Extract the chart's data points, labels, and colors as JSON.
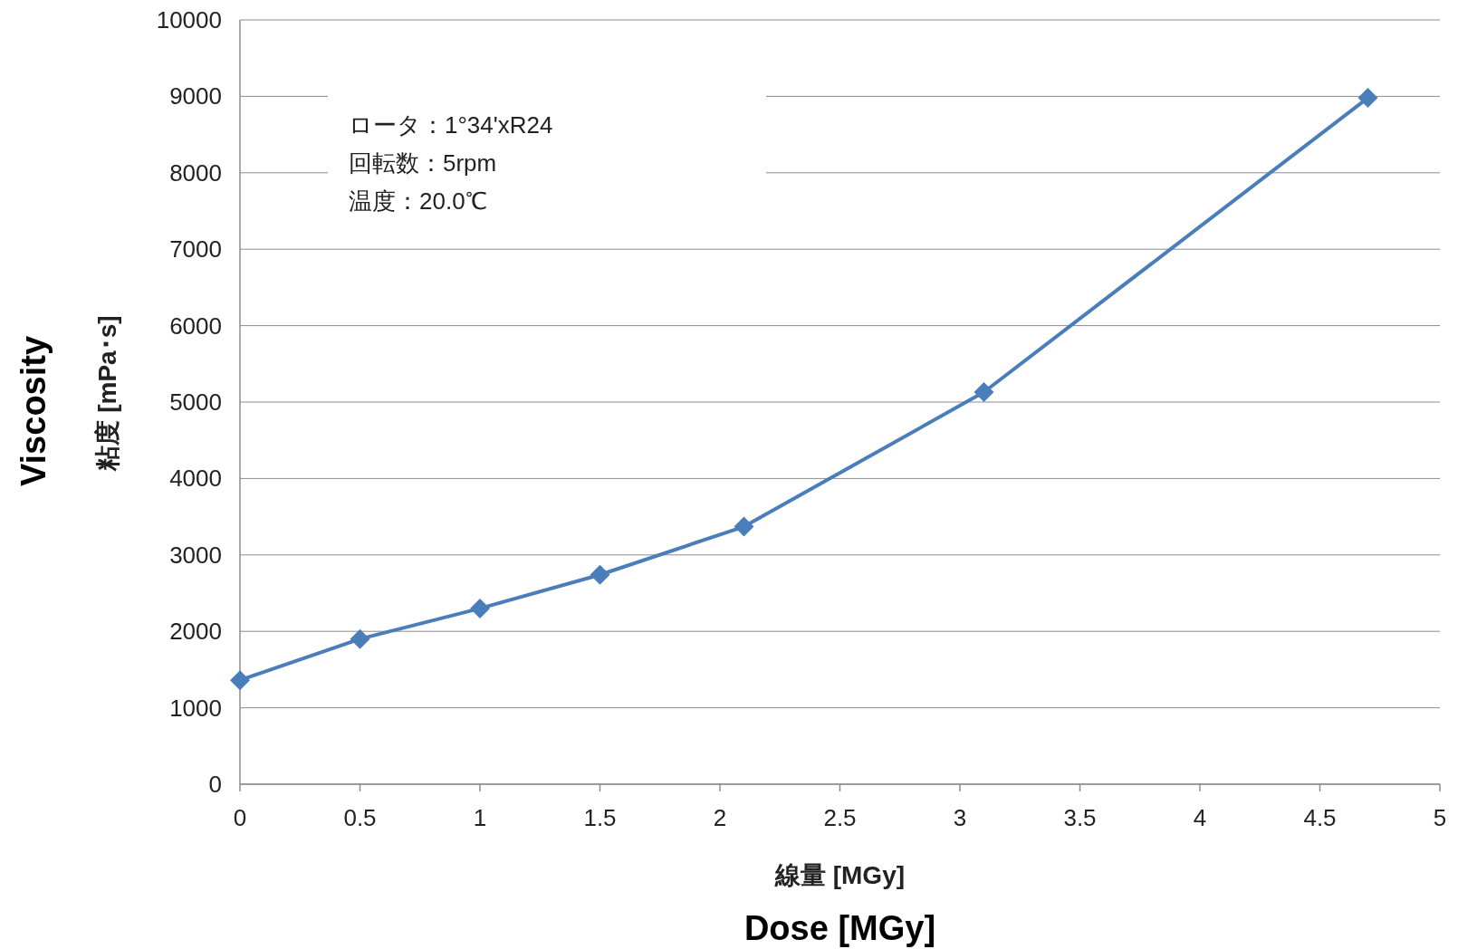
{
  "chart_data": {
    "type": "line",
    "xlabel": "線量 [MGy]\nDose [MGy]",
    "ylabel": "Viscosity\n粘度 [mPa･s]",
    "annotations": [
      "ロータ：1°34'xR24",
      "回転数：5rpm",
      "温度：20.0℃"
    ],
    "x": [
      0,
      0.5,
      1,
      1.5,
      2.1,
      3.1,
      4.7
    ],
    "series": [
      {
        "color": "#4a7ebb",
        "values": [
          1360,
          1900,
          2300,
          2740,
          3370,
          5130,
          8980
        ]
      }
    ],
    "xlim": [
      0,
      5
    ],
    "xticks": [
      0,
      0.5,
      1,
      1.5,
      2,
      2.5,
      3,
      3.5,
      4,
      4.5,
      5
    ],
    "ylim": [
      0,
      10000
    ],
    "yticks": [
      0,
      1000,
      2000,
      3000,
      4000,
      5000,
      6000,
      7000,
      8000,
      9000,
      10000
    ],
    "grid": "y",
    "marker": "diamond",
    "line_style": "solid"
  }
}
